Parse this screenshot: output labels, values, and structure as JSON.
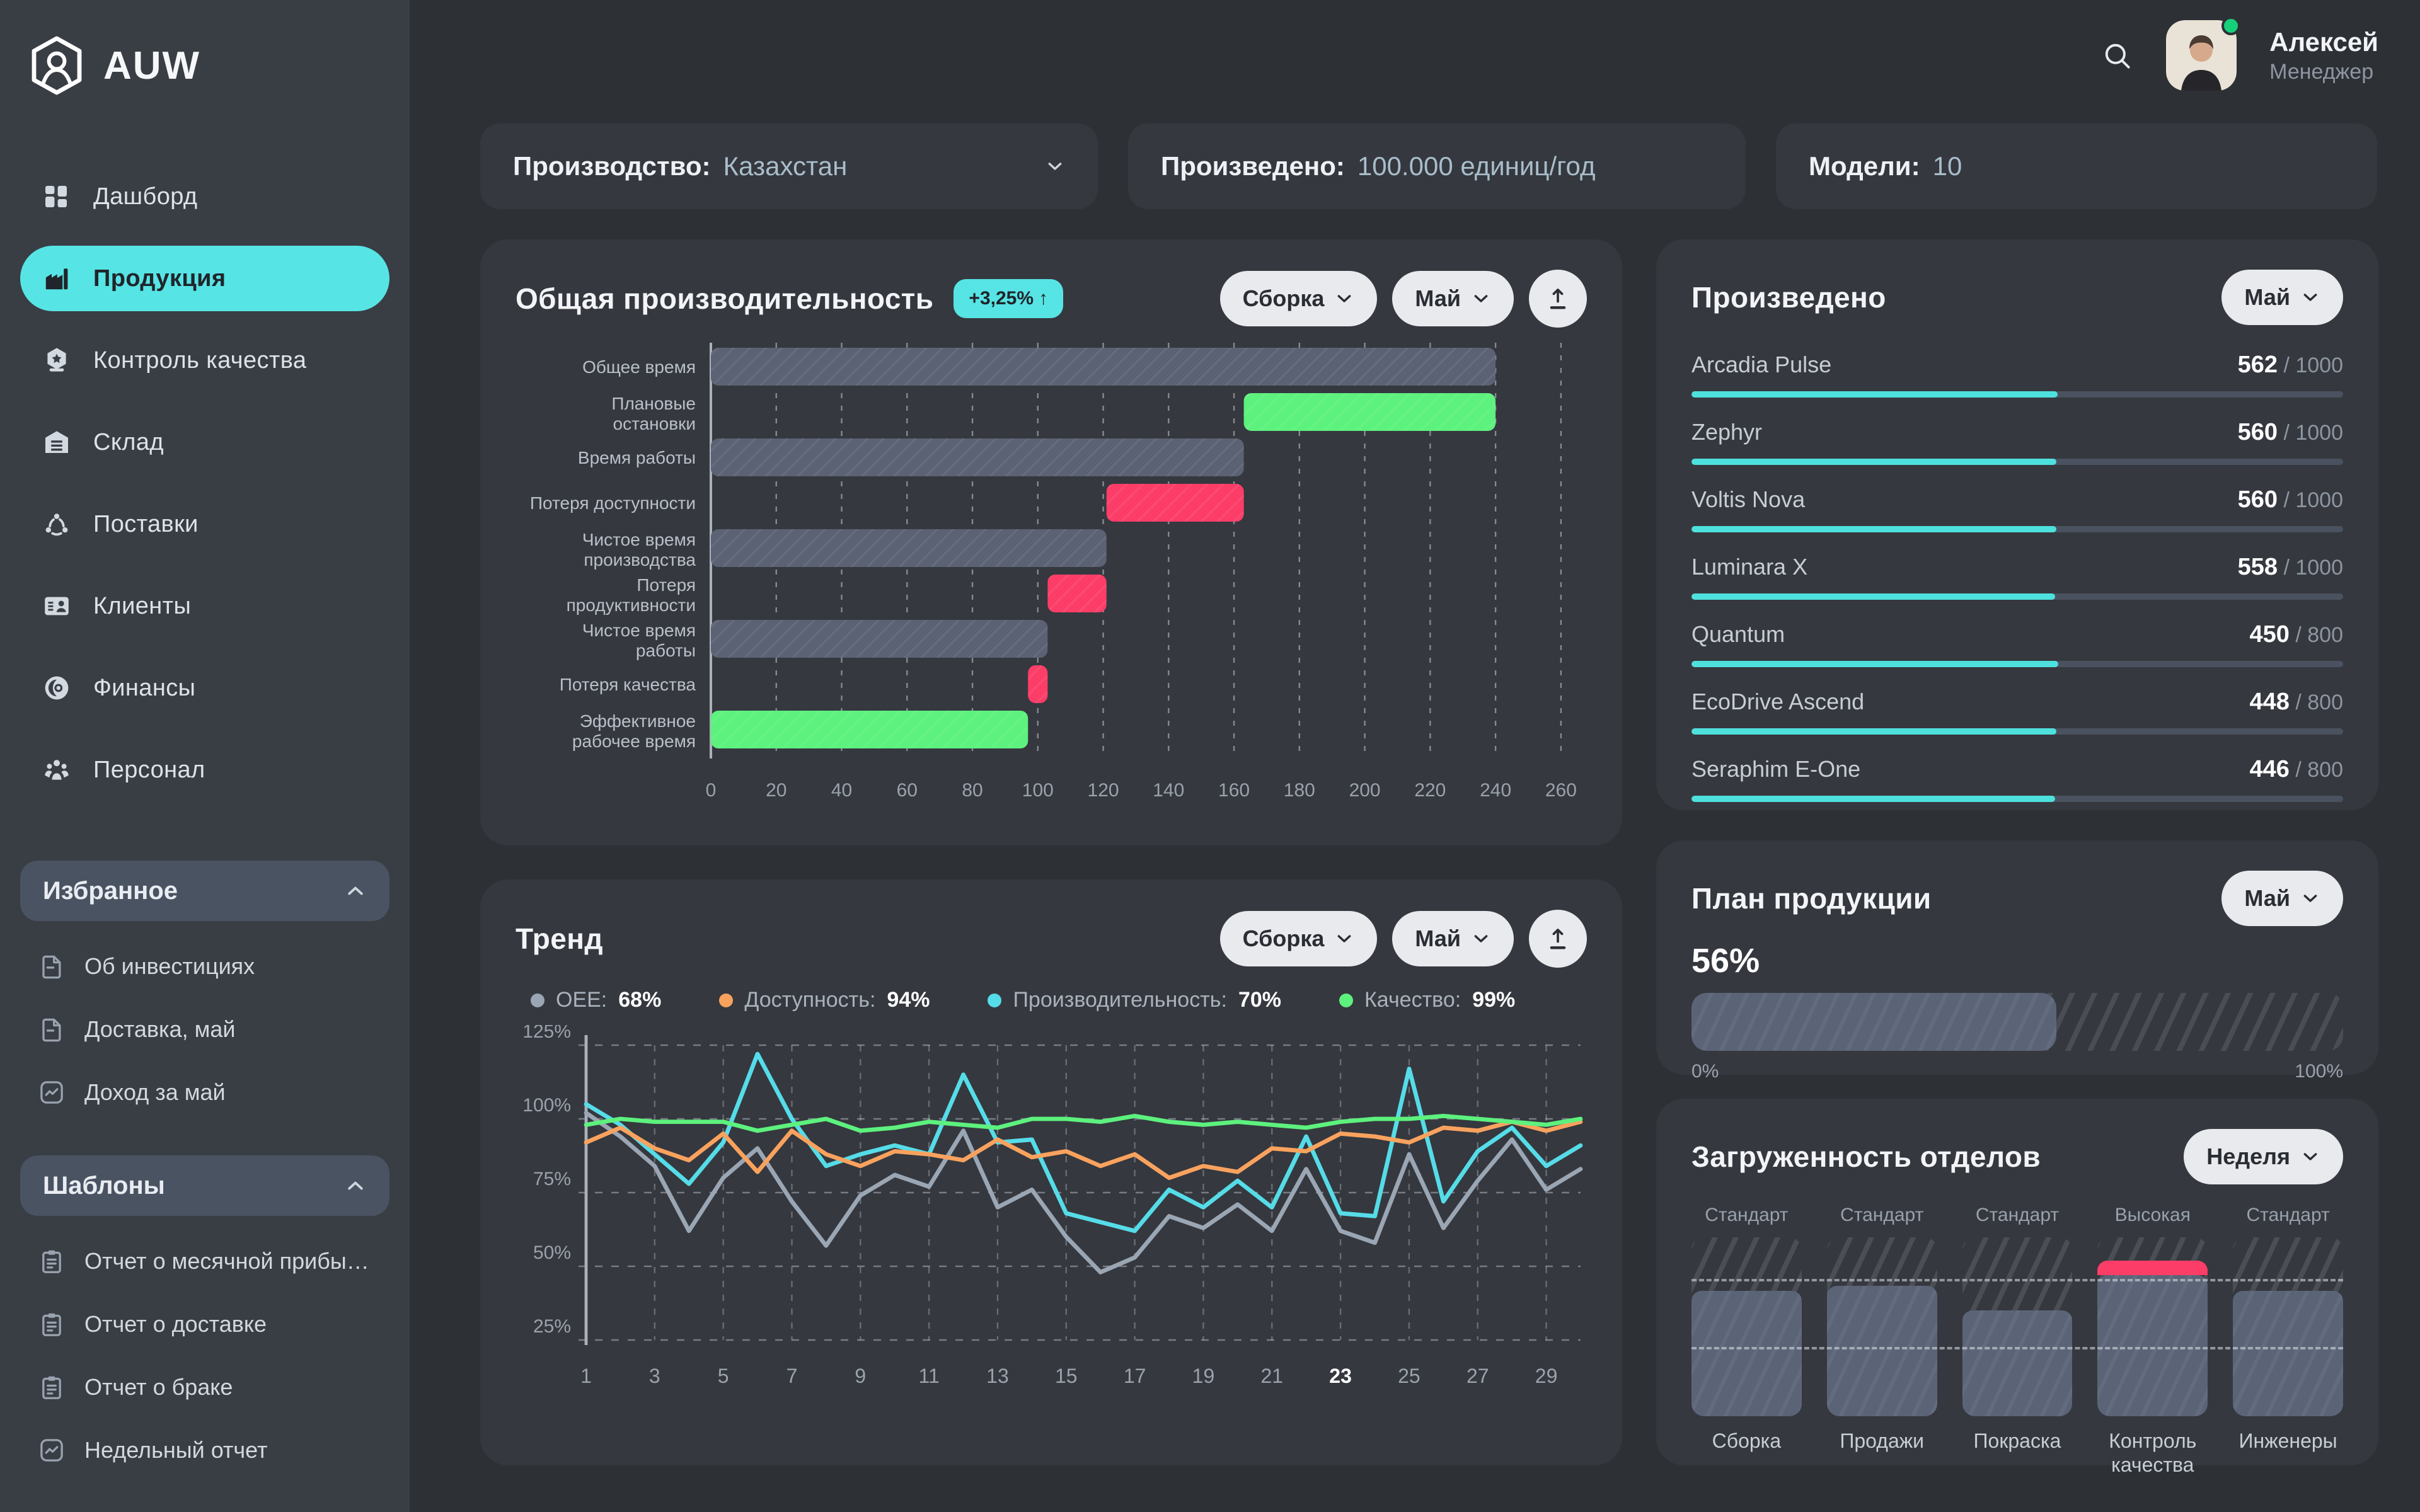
{
  "app": {
    "logo_text": "AUW"
  },
  "user": {
    "name": "Алексей",
    "role": "Менеджер",
    "status": "online"
  },
  "sidebar": {
    "nav": [
      {
        "label": "Дашборд",
        "icon": "dashboard-icon",
        "active": false
      },
      {
        "label": "Продукция",
        "icon": "production-icon",
        "active": true
      },
      {
        "label": "Контроль качества",
        "icon": "quality-icon",
        "active": false
      },
      {
        "label": "Склад",
        "icon": "warehouse-icon",
        "active": false
      },
      {
        "label": "Поставки",
        "icon": "supply-icon",
        "active": false
      },
      {
        "label": "Клиенты",
        "icon": "clients-icon",
        "active": false
      },
      {
        "label": "Финансы",
        "icon": "finance-icon",
        "active": false
      },
      {
        "label": "Персонал",
        "icon": "staff-icon",
        "active": false
      }
    ],
    "favorites": {
      "title": "Избранное",
      "items": [
        {
          "label": "Об инвестициях",
          "icon": "file-icon"
        },
        {
          "label": "Доставка, май",
          "icon": "file-icon"
        },
        {
          "label": "Доход за май",
          "icon": "chart-icon"
        }
      ]
    },
    "templates": {
      "title": "Шаблоны",
      "items": [
        {
          "label": "Отчет о месячной прибы…",
          "icon": "clipboard-icon"
        },
        {
          "label": "Отчет о доставке",
          "icon": "clipboard-icon"
        },
        {
          "label": "Отчет о браке",
          "icon": "clipboard-icon"
        },
        {
          "label": "Недельный отчет",
          "icon": "chart-icon"
        }
      ]
    }
  },
  "filters": [
    {
      "label": "Производство:",
      "value": "Казахстан",
      "chevron": true
    },
    {
      "label": "Произведено:",
      "value": "100.000 единиц/год",
      "chevron": false
    },
    {
      "label": "Модели:",
      "value": "10",
      "chevron": false
    }
  ],
  "oee_panel": {
    "title": "Общая производительность",
    "badge": "+3,25%",
    "badge_arrow": "↑",
    "filter1": "Сборка",
    "filter2": "Май"
  },
  "trend_panel": {
    "title": "Тренд",
    "filter1": "Сборка",
    "filter2": "Май"
  },
  "produced_panel": {
    "title": "Произведено",
    "filter": "Май",
    "items": [
      {
        "name": "Arcadia Pulse",
        "value": 562,
        "total": 1000
      },
      {
        "name": "Zephyr",
        "value": 560,
        "total": 1000
      },
      {
        "name": "Voltis Nova",
        "value": 560,
        "total": 1000
      },
      {
        "name": "Luminara X",
        "value": 558,
        "total": 1000
      },
      {
        "name": "Quantum",
        "value": 450,
        "total": 800
      },
      {
        "name": "EcoDrive Ascend",
        "value": 448,
        "total": 800
      },
      {
        "name": "Seraphim E-One",
        "value": 446,
        "total": 800
      }
    ]
  },
  "plan_panel": {
    "title": "План продукции",
    "filter": "Май",
    "percent": "56%",
    "progress": 56,
    "min_label": "0%",
    "max_label": "100%"
  },
  "departments_panel": {
    "title": "Загруженность отделов",
    "filter": "Неделя",
    "threshold_lines": [
      79,
      41
    ],
    "items": [
      {
        "name": "Сборка",
        "status": "Стандарт",
        "fill": 70,
        "over": 0
      },
      {
        "name": "Продажи",
        "status": "Стандарт",
        "fill": 73,
        "over": 0
      },
      {
        "name": "Покраска",
        "status": "Стандарт",
        "fill": 59,
        "over": 0
      },
      {
        "name": "Контроль качества",
        "status": "Высокая",
        "fill": 79,
        "over": 8
      },
      {
        "name": "Инженеры",
        "status": "Стандарт",
        "fill": 70,
        "over": 0
      }
    ]
  },
  "chart_data": [
    {
      "type": "bar",
      "subtype": "horizontal-waterfall",
      "title": "Общая производительность",
      "xlim": [
        0,
        266
      ],
      "xticks": [
        0,
        20,
        40,
        60,
        80,
        100,
        120,
        140,
        160,
        180,
        200,
        220,
        240,
        260
      ],
      "grid": "vertical-dashed",
      "colors": {
        "slate": "#5b6274",
        "green": "#5df17e",
        "pink": "#fb3d68"
      },
      "categories": [
        {
          "label_lines": [
            "Общее время"
          ],
          "start": 0,
          "end": 240,
          "color": "slate"
        },
        {
          "label_lines": [
            "Плановые",
            "остановки"
          ],
          "start": 163,
          "end": 240,
          "color": "green"
        },
        {
          "label_lines": [
            "Время работы"
          ],
          "start": 0,
          "end": 163,
          "color": "slate"
        },
        {
          "label_lines": [
            "Потеря доступности"
          ],
          "start": 121,
          "end": 163,
          "color": "pink"
        },
        {
          "label_lines": [
            "Чистое время",
            "производства"
          ],
          "start": 0,
          "end": 121,
          "color": "slate"
        },
        {
          "label_lines": [
            "Потеря",
            "продуктивности"
          ],
          "start": 103,
          "end": 121,
          "color": "pink"
        },
        {
          "label_lines": [
            "Чистое время",
            "работы"
          ],
          "start": 0,
          "end": 103,
          "color": "slate"
        },
        {
          "label_lines": [
            "Потеря качества"
          ],
          "start": 97,
          "end": 103,
          "color": "pink"
        },
        {
          "label_lines": [
            "Эффективное",
            "рабочее время"
          ],
          "start": 0,
          "end": 97,
          "color": "green"
        }
      ]
    },
    {
      "type": "line",
      "title": "Тренд",
      "x_range": [
        1,
        30
      ],
      "x_labels_shown": [
        1,
        3,
        5,
        7,
        9,
        11,
        13,
        15,
        17,
        19,
        21,
        23,
        25,
        27,
        29
      ],
      "highlight_x": 23,
      "ylim": [
        25,
        125
      ],
      "yticks": [
        "125%",
        "100%",
        "75%",
        "50%",
        "25%"
      ],
      "ytick_values": [
        125,
        100,
        75,
        50,
        25
      ],
      "grid": "dashed",
      "legend_position": "top",
      "series": [
        {
          "name": "OEE",
          "value_label": "68%",
          "color": "#9aa6b4",
          "values": [
            102,
            94,
            84,
            62,
            80,
            90,
            72,
            57,
            74,
            81,
            77,
            96,
            70,
            76,
            60,
            48,
            53,
            67,
            63,
            71,
            62,
            83,
            62,
            58,
            88,
            63,
            79,
            93,
            76,
            83
          ]
        },
        {
          "name": "Доступность",
          "value_label": "94%",
          "color": "#f9a25e",
          "values": [
            92,
            97,
            90,
            86,
            95,
            82,
            96,
            88,
            84,
            89,
            88,
            86,
            93,
            87,
            89,
            84,
            88,
            80,
            84,
            82,
            90,
            89,
            95,
            94,
            92,
            97,
            96,
            99,
            96,
            99
          ]
        },
        {
          "name": "Производительность",
          "value_label": "70%",
          "color": "#55dce8",
          "values": [
            105,
            98,
            88,
            78,
            92,
            122,
            100,
            84,
            88,
            91,
            88,
            115,
            92,
            93,
            68,
            65,
            62,
            76,
            70,
            79,
            70,
            94,
            68,
            67,
            117,
            72,
            89,
            97,
            84,
            91
          ]
        },
        {
          "name": "Качество",
          "value_label": "99%",
          "color": "#5df17e",
          "values": [
            98,
            100,
            99,
            99,
            99,
            96,
            98,
            100,
            96,
            97,
            99,
            98,
            97,
            100,
            100,
            99,
            101,
            99,
            98,
            99,
            98,
            97,
            99,
            100,
            100,
            101,
            100,
            99,
            98,
            100
          ]
        }
      ]
    },
    {
      "type": "bar",
      "subtype": "department-load",
      "title": "Загруженность отделов",
      "categories": [
        "Сборка",
        "Продажи",
        "Покраска",
        "Контроль качества",
        "Инженеры"
      ],
      "values": [
        70,
        73,
        59,
        87,
        70
      ],
      "statuses": [
        "Стандарт",
        "Стандарт",
        "Стандарт",
        "Высокая",
        "Стандарт"
      ],
      "threshold_lines": [
        79,
        41
      ]
    }
  ]
}
